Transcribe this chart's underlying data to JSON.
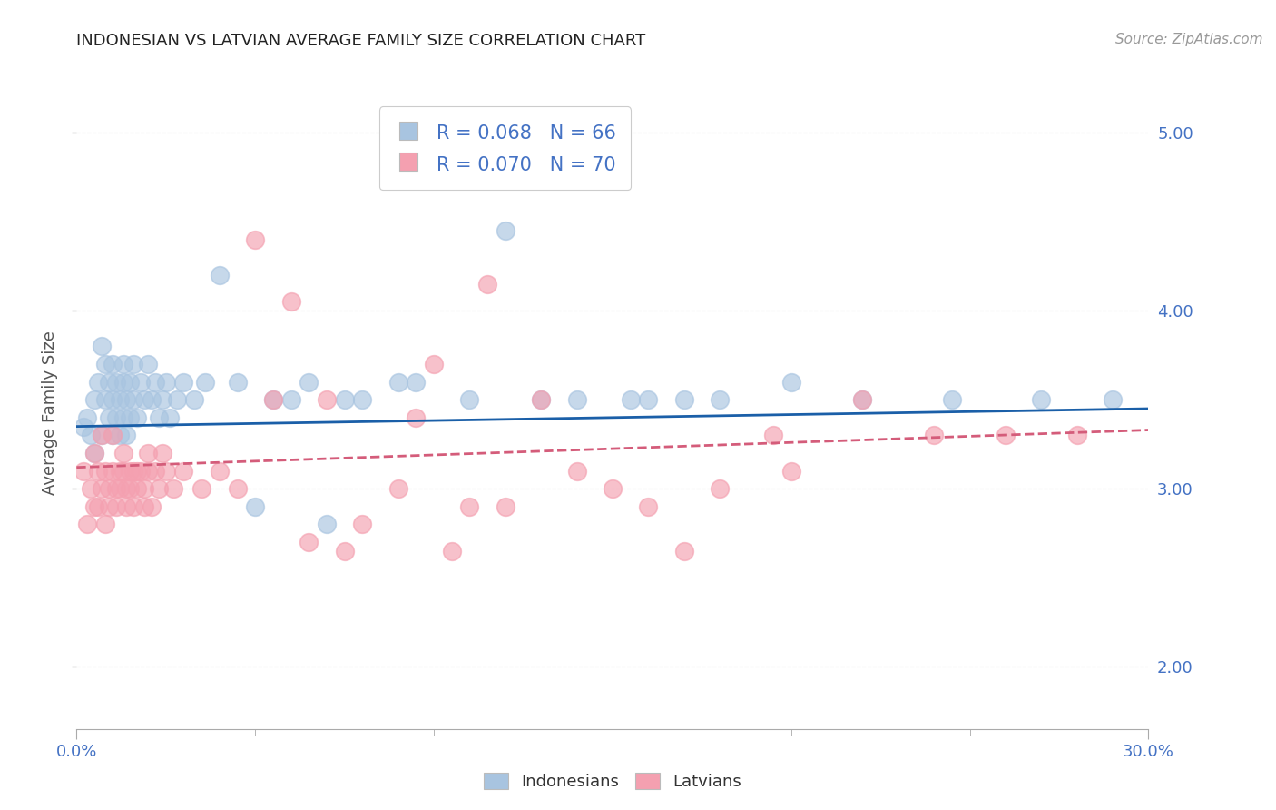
{
  "title": "INDONESIAN VS LATVIAN AVERAGE FAMILY SIZE CORRELATION CHART",
  "source": "Source: ZipAtlas.com",
  "ylabel": "Average Family Size",
  "xmin": 0.0,
  "xmax": 0.3,
  "ymin": 1.65,
  "ymax": 5.2,
  "yticks": [
    2.0,
    3.0,
    4.0,
    5.0
  ],
  "xticks": [
    0.0,
    0.3
  ],
  "xtick_labels": [
    "0.0%",
    "30.0%"
  ],
  "legend_label1": "Indonesians",
  "legend_label2": "Latvians",
  "indonesian_color": "#a8c4e0",
  "latvian_color": "#f4a0b0",
  "indonesian_line_color": "#1a5fa8",
  "latvian_line_color": "#d45c7a",
  "background_color": "#ffffff",
  "title_color": "#222222",
  "title_fontsize": 13,
  "axis_label_color": "#555555",
  "tick_color": "#4472c4",
  "grid_color": "#cccccc",
  "indonesian_x": [
    0.002,
    0.003,
    0.004,
    0.005,
    0.005,
    0.006,
    0.007,
    0.007,
    0.008,
    0.008,
    0.009,
    0.009,
    0.01,
    0.01,
    0.01,
    0.011,
    0.011,
    0.012,
    0.012,
    0.013,
    0.013,
    0.013,
    0.014,
    0.014,
    0.015,
    0.015,
    0.016,
    0.016,
    0.017,
    0.018,
    0.019,
    0.02,
    0.021,
    0.022,
    0.023,
    0.024,
    0.025,
    0.026,
    0.028,
    0.03,
    0.033,
    0.036,
    0.04,
    0.045,
    0.055,
    0.065,
    0.075,
    0.09,
    0.11,
    0.13,
    0.155,
    0.18,
    0.2,
    0.22,
    0.245,
    0.27,
    0.29,
    0.14,
    0.16,
    0.05,
    0.06,
    0.07,
    0.08,
    0.095,
    0.17,
    0.12
  ],
  "indonesian_y": [
    3.35,
    3.4,
    3.3,
    3.5,
    3.2,
    3.6,
    3.3,
    3.8,
    3.5,
    3.7,
    3.4,
    3.6,
    3.3,
    3.5,
    3.7,
    3.6,
    3.4,
    3.5,
    3.3,
    3.6,
    3.4,
    3.7,
    3.5,
    3.3,
    3.6,
    3.4,
    3.5,
    3.7,
    3.4,
    3.6,
    3.5,
    3.7,
    3.5,
    3.6,
    3.4,
    3.5,
    3.6,
    3.4,
    3.5,
    3.6,
    3.5,
    3.6,
    4.2,
    3.6,
    3.5,
    3.6,
    3.5,
    3.6,
    3.5,
    3.5,
    3.5,
    3.5,
    3.6,
    3.5,
    3.5,
    3.5,
    3.5,
    3.5,
    3.5,
    2.9,
    3.5,
    2.8,
    3.5,
    3.6,
    3.5,
    4.45
  ],
  "latvian_x": [
    0.002,
    0.003,
    0.004,
    0.005,
    0.005,
    0.006,
    0.006,
    0.007,
    0.007,
    0.008,
    0.008,
    0.009,
    0.009,
    0.01,
    0.01,
    0.011,
    0.011,
    0.012,
    0.012,
    0.013,
    0.013,
    0.014,
    0.014,
    0.015,
    0.015,
    0.016,
    0.016,
    0.017,
    0.017,
    0.018,
    0.019,
    0.019,
    0.02,
    0.02,
    0.021,
    0.022,
    0.023,
    0.024,
    0.025,
    0.027,
    0.03,
    0.035,
    0.04,
    0.045,
    0.05,
    0.06,
    0.07,
    0.08,
    0.09,
    0.1,
    0.12,
    0.14,
    0.16,
    0.18,
    0.2,
    0.22,
    0.055,
    0.065,
    0.075,
    0.095,
    0.11,
    0.13,
    0.15,
    0.17,
    0.24,
    0.26,
    0.28,
    0.195,
    0.115,
    0.105
  ],
  "latvian_y": [
    3.1,
    2.8,
    3.0,
    2.9,
    3.2,
    3.1,
    2.9,
    3.0,
    3.3,
    2.8,
    3.1,
    3.0,
    2.9,
    3.1,
    3.3,
    3.0,
    2.9,
    3.1,
    3.0,
    3.1,
    3.2,
    3.0,
    2.9,
    3.1,
    3.0,
    3.1,
    2.9,
    3.1,
    3.0,
    3.1,
    3.0,
    2.9,
    3.1,
    3.2,
    2.9,
    3.1,
    3.0,
    3.2,
    3.1,
    3.0,
    3.1,
    3.0,
    3.1,
    3.0,
    4.4,
    4.05,
    3.5,
    2.8,
    3.0,
    3.7,
    2.9,
    3.1,
    2.9,
    3.0,
    3.1,
    3.5,
    3.5,
    2.7,
    2.65,
    3.4,
    2.9,
    3.5,
    3.0,
    2.65,
    3.3,
    3.3,
    3.3,
    3.3,
    4.15,
    2.65
  ],
  "indo_trendline_x0": 0.0,
  "indo_trendline_y0": 3.35,
  "indo_trendline_x1": 0.3,
  "indo_trendline_y1": 3.45,
  "latv_trendline_x0": 0.0,
  "latv_trendline_y0": 3.12,
  "latv_trendline_x1": 0.3,
  "latv_trendline_y1": 3.33
}
